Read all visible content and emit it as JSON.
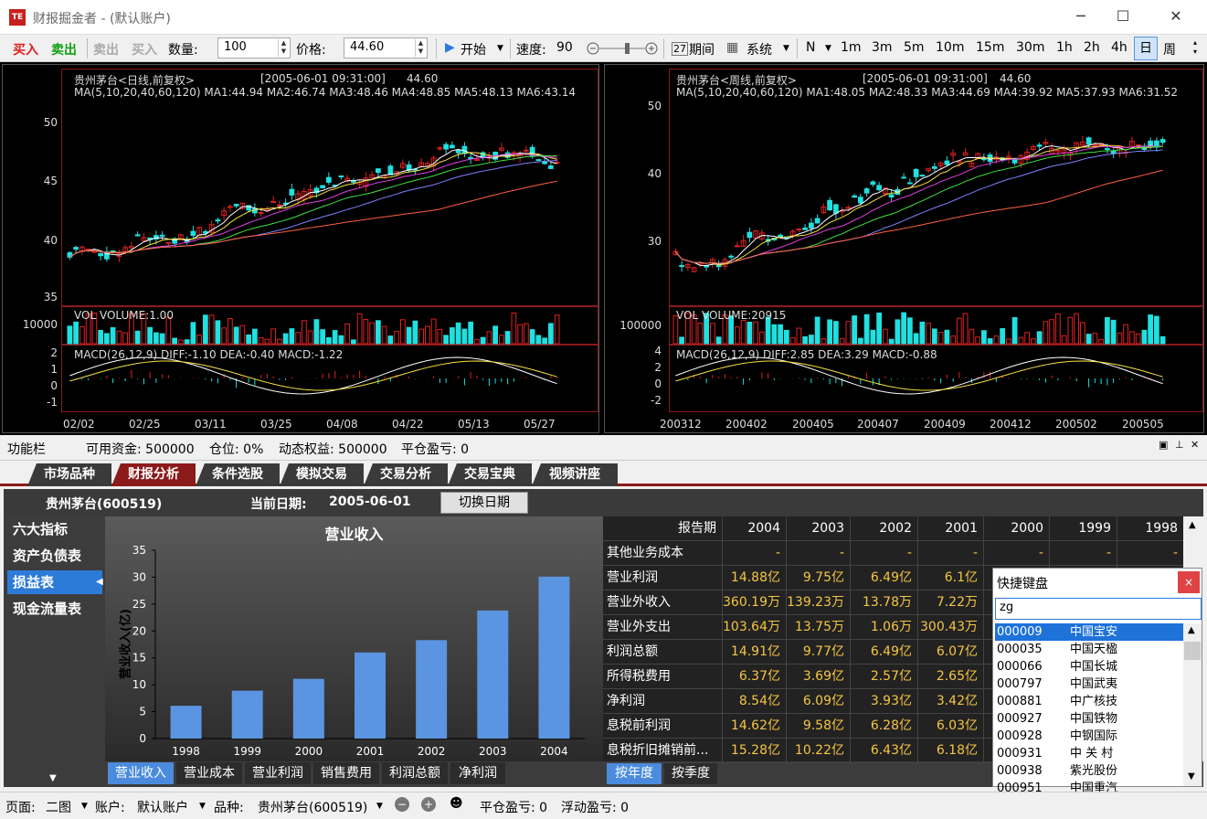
{
  "window": {
    "title": "财报掘金者 - (默认账户)",
    "logo": "TE"
  },
  "toolbar": {
    "buy": "买入",
    "sell": "卖出",
    "sell2": "卖出",
    "buy2": "买入",
    "qty_label": "数量:",
    "qty_value": "100",
    "price_label": "价格:",
    "price_value": "44.60",
    "start": "开始",
    "speed_label": "速度:",
    "speed_value": "90",
    "period": "期间",
    "system": "系统",
    "n": "N",
    "timeframes": [
      "1m",
      "3m",
      "5m",
      "10m",
      "15m",
      "30m",
      "1h",
      "2h",
      "4h",
      "日",
      "周"
    ]
  },
  "left_chart": {
    "title": "贵州茅台<日线,前复权>",
    "date": "[2005-06-01 09:31:00]",
    "price": "44.60",
    "ma": "MA(5,10,20,40,60,120)  MA1:44.94  MA2:46.74  MA3:48.46  MA4:48.85  MA5:48.13  MA6:43.14",
    "yticks": [
      "50",
      "45",
      "40",
      "35"
    ],
    "vol": "VOL  VOLUME:1.00",
    "vol_tick": "10000",
    "macd": "MACD(26,12,9)  DIFF:-1.10  DEA:-0.40  MACD:-1.22",
    "macd_ticks": [
      "2",
      "1",
      "0",
      "-1"
    ],
    "xticks": [
      "02/02",
      "02/25",
      "03/11",
      "03/25",
      "04/08",
      "04/22",
      "05/13",
      "05/27"
    ]
  },
  "right_chart": {
    "title": "贵州茅台<周线,前复权>",
    "date": "[2005-06-01 09:31:00]",
    "price": "44.60",
    "ma": "MA(5,10,20,40,60,120)  MA1:48.05  MA2:48.33  MA3:44.69  MA4:39.92  MA5:37.93  MA6:31.52",
    "yticks": [
      "50",
      "40",
      "30"
    ],
    "vol": "VOL  VOLUME:20915",
    "vol_tick": "100000",
    "macd": "MACD(26,12,9)  DIFF:2.85  DEA:3.29  MACD:-0.88",
    "macd_ticks": [
      "4",
      "2",
      "0",
      "-2"
    ],
    "xticks": [
      "200312",
      "200402",
      "200405",
      "200407",
      "200409",
      "200412",
      "200502",
      "200505"
    ]
  },
  "funcbar": {
    "label": "功能栏",
    "cash": "可用资金: 500000",
    "position": "仓位: 0%",
    "equity": "动态权益: 500000",
    "pnl": "平仓盈亏: 0"
  },
  "tabs": [
    "市场品种",
    "财报分析",
    "条件选股",
    "模拟交易",
    "交易分析",
    "交易宝典",
    "视频讲座"
  ],
  "info": {
    "stock": "贵州茅台(600519)",
    "date_label": "当前日期:",
    "date_value": "2005-06-01",
    "switch": "切换日期"
  },
  "sidebar": [
    "六大指标",
    "资产负债表",
    "损益表",
    "现金流量表"
  ],
  "chart_data": {
    "type": "bar",
    "title": "营业收入",
    "ylabel": "营业收入(亿)",
    "categories": [
      "1998",
      "1999",
      "2000",
      "2001",
      "2002",
      "2003",
      "2004"
    ],
    "values": [
      6.1,
      8.9,
      11.1,
      16.0,
      18.3,
      23.8,
      30.1
    ],
    "yticks": [
      "0",
      "5",
      "10",
      "15",
      "20",
      "25",
      "30",
      "35"
    ],
    "ylim": [
      0,
      35
    ]
  },
  "bottom_tabs": [
    "营业收入",
    "营业成本",
    "营业利润",
    "销售费用",
    "利润总额",
    "净利润"
  ],
  "period_tabs": [
    "按年度",
    "按季度"
  ],
  "table": {
    "header": [
      "报告期",
      "2004",
      "2003",
      "2002",
      "2001",
      "2000",
      "1999",
      "1998"
    ],
    "rows": [
      [
        "其他业务成本",
        "-",
        "-",
        "-",
        "-",
        "-",
        "-",
        "-"
      ],
      [
        "营业利润",
        "14.88亿",
        "9.75亿",
        "6.49亿",
        "6.1亿"
      ],
      [
        "营业外收入",
        "360.19万",
        "139.23万",
        "13.78万",
        "7.22万"
      ],
      [
        "营业外支出",
        "103.64万",
        "13.75万",
        "1.06万",
        "300.43万"
      ],
      [
        "利润总额",
        "14.91亿",
        "9.77亿",
        "6.49亿",
        "6.07亿"
      ],
      [
        "所得税费用",
        "6.37亿",
        "3.69亿",
        "2.57亿",
        "2.65亿"
      ],
      [
        "净利润",
        "8.54亿",
        "6.09亿",
        "3.93亿",
        "3.42亿"
      ],
      [
        "息税前利润",
        "14.62亿",
        "9.58亿",
        "6.28亿",
        "6.03亿"
      ],
      [
        "息税折旧摊销前...",
        "15.28亿",
        "10.22亿",
        "6.43亿",
        "6.18亿"
      ]
    ]
  },
  "kbd": {
    "title": "快捷键盘",
    "close": "×",
    "input": "zg",
    "items": [
      [
        "000009",
        "中国宝安"
      ],
      [
        "000035",
        "中国天楹"
      ],
      [
        "000066",
        "中国长城"
      ],
      [
        "000797",
        "中国武夷"
      ],
      [
        "000881",
        "中广核技"
      ],
      [
        "000927",
        "中国铁物"
      ],
      [
        "000928",
        "中钢国际"
      ],
      [
        "000931",
        "中 关 村"
      ],
      [
        "000938",
        "紫光股份"
      ],
      [
        "000951",
        "中国重汽"
      ]
    ]
  },
  "statusbar": {
    "page_label": "页面:",
    "page_value": "二图",
    "account_label": "账户:",
    "account_value": "默认账户",
    "symbol_label": "品种:",
    "symbol_value": "贵州茅台(600519)",
    "pnl": "平仓盈亏: 0",
    "float": "浮动盈亏: 0"
  },
  "colors": {
    "up": "#e02020",
    "down": "#20e0e0",
    "tab_active": "#8b1a1a",
    "bar": "#5b94e0",
    "yellow": "#f5c542"
  }
}
